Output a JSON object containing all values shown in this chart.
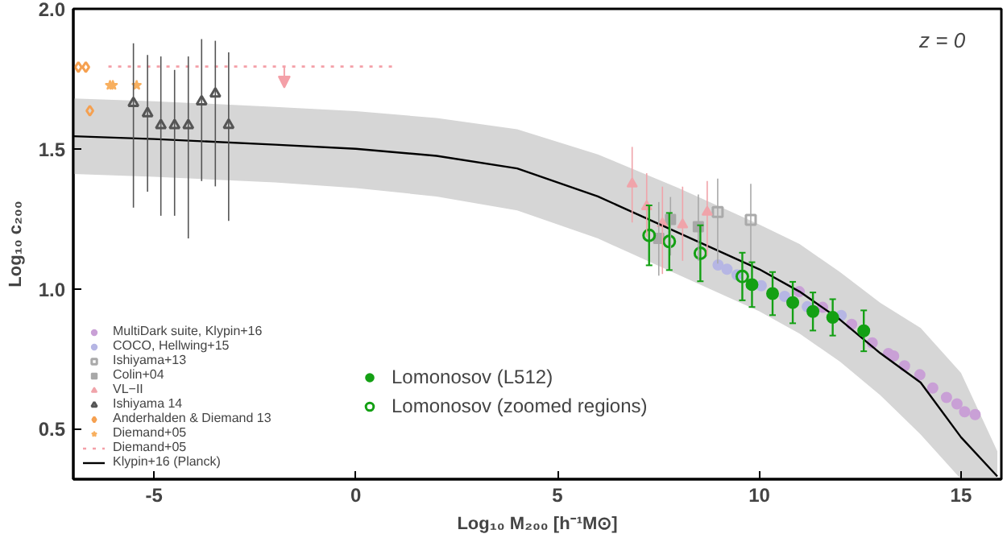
{
  "chart_data": {
    "type": "scatter",
    "xlabel": "Log₁₀ M₂₀₀ [h⁻¹M⊙]",
    "ylabel": "Log₁₀ c₂₀₀",
    "annotations": [
      "z = 0"
    ],
    "xlim": [
      -7,
      16
    ],
    "ylim": [
      0.32,
      2.0
    ],
    "xticks": [
      -5,
      0,
      5,
      10,
      15
    ],
    "yticks": [
      {
        "value": 0.5,
        "label": "0.5"
      },
      {
        "value": 1.0,
        "label": "1.0"
      },
      {
        "value": 1.5,
        "label": "1.5"
      },
      {
        "value": 2.0,
        "label": "2.0"
      }
    ],
    "grid": false,
    "legend": "bottom left",
    "series": [
      {
        "name": "MultiDark suite, Klypin+16",
        "marker": "circle",
        "color": "#c9a0d6",
        "x": [
          10.99,
          11.57,
          12.29,
          12.8,
          13.2,
          13.33,
          13.6,
          13.98,
          14.3,
          14.64,
          14.9,
          15.09,
          15.35
        ],
        "values": [
          0.99,
          0.934,
          0.873,
          0.807,
          0.769,
          0.76,
          0.725,
          0.693,
          0.646,
          0.612,
          0.589,
          0.561,
          0.551
        ]
      },
      {
        "name": "COCO, Hellwing+15",
        "marker": "circle",
        "color": "#b6b6e4",
        "x": [
          8.98,
          9.2,
          9.45,
          10.05,
          10.63,
          11.19,
          12.03
        ],
        "values": [
          1.085,
          1.07,
          1.05,
          1.011,
          0.973,
          0.936,
          0.905
        ]
      },
      {
        "name": "Ishiyama+13",
        "marker": "square_open",
        "color": "#aaaaaa",
        "x": [
          8.97,
          9.79
        ],
        "values": [
          1.274,
          1.246
        ],
        "errors": [
          [
            1.09,
            1.394
          ],
          [
            1.09,
            1.375
          ]
        ]
      },
      {
        "name": "Colin+04",
        "marker": "square",
        "color": "#a8a8a8",
        "x": [
          7.51,
          7.8,
          8.49
        ],
        "values": [
          1.18,
          1.248,
          1.222
        ],
        "errors": [
          [
            1.047,
            1.31
          ],
          [
            1.119,
            1.328
          ],
          [
            1.1,
            1.337
          ]
        ]
      },
      {
        "name": "VL−II",
        "marker": "triangle",
        "color": "#f0a4aa",
        "x": [
          6.85,
          7.21,
          7.6,
          8.1,
          8.71
        ],
        "values": [
          1.375,
          1.294,
          1.233,
          1.229,
          1.274
        ],
        "errors": [
          [
            1.237,
            1.507
          ],
          [
            1.186,
            1.413
          ],
          [
            1.053,
            1.365
          ],
          [
            1.1,
            1.365
          ],
          [
            1.119,
            1.385
          ]
        ]
      },
      {
        "name": "Ishiyama 14",
        "marker": "triangle_open",
        "color": "#555555",
        "x": [
          -5.51,
          -5.16,
          -4.83,
          -4.49,
          -4.15,
          -3.82,
          -3.48,
          -3.15
        ],
        "values": [
          1.663,
          1.627,
          1.584,
          1.584,
          1.584,
          1.669,
          1.697,
          1.585
        ],
        "errors": [
          [
            1.29,
            1.877
          ],
          [
            1.347,
            1.835
          ],
          [
            1.261,
            1.83
          ],
          [
            1.261,
            1.782
          ],
          [
            1.18,
            1.83
          ],
          [
            1.385,
            1.892
          ],
          [
            1.366,
            1.886
          ],
          [
            1.243,
            1.845
          ]
        ]
      },
      {
        "name": "Anderhalden & Diemand 13",
        "marker": "diamond_open",
        "color": "#f5a050",
        "x": [
          -6.875,
          -6.69,
          -6.59
        ],
        "values": [
          1.792,
          1.792,
          1.636
        ]
      },
      {
        "name": "Diemand+05",
        "marker": "star",
        "color": "#f8b060",
        "x": [
          -6.09,
          -6.02,
          -5.43
        ],
        "values": [
          1.727,
          1.727,
          1.727
        ]
      },
      {
        "name": "Diemand+05",
        "type": "line",
        "line_style": "dotted",
        "color": "#f4a0a8",
        "x": [
          -6.13,
          0.9
        ],
        "values": [
          1.794,
          1.794
        ]
      },
      {
        "name": "Klypin+16 (Planck)",
        "type": "line",
        "color": "#000000",
        "line_style": "solid",
        "x": [
          -7,
          -5,
          -2,
          0,
          2,
          4,
          6,
          8,
          10,
          11,
          12,
          13,
          14,
          15,
          15.9
        ],
        "values": [
          1.545,
          1.535,
          1.515,
          1.5,
          1.475,
          1.43,
          1.33,
          1.2,
          1.07,
          0.99,
          0.89,
          0.77,
          0.665,
          0.47,
          0.33
        ],
        "lower": [
          1.41,
          1.4,
          1.38,
          1.36,
          1.33,
          1.28,
          1.18,
          1.05,
          0.92,
          0.84,
          0.74,
          0.62,
          0.48,
          0.32,
          0.32
        ],
        "upper": [
          1.68,
          1.67,
          1.65,
          1.635,
          1.61,
          1.57,
          1.48,
          1.36,
          1.23,
          1.16,
          1.06,
          0.95,
          0.86,
          0.7,
          0.42
        ]
      },
      {
        "name": "Lomonosov (L512)",
        "marker": "circle",
        "color": "#14a014",
        "x": [
          9.82,
          10.33,
          10.83,
          11.33,
          11.82,
          12.59
        ],
        "values": [
          1.015,
          0.983,
          0.951,
          0.919,
          0.898,
          0.85
        ],
        "errors": [
          0.08,
          0.077,
          0.074,
          0.068,
          0.065,
          0.073
        ]
      },
      {
        "name": "Lomonosov (zoomed regions)",
        "marker": "circle_open",
        "color": "#14a014",
        "x": [
          7.27,
          7.77,
          8.54,
          9.58
        ],
        "values": [
          1.191,
          1.169,
          1.127,
          1.044
        ],
        "errors": [
          0.107,
          0.102,
          0.1,
          0.085
        ]
      }
    ]
  }
}
